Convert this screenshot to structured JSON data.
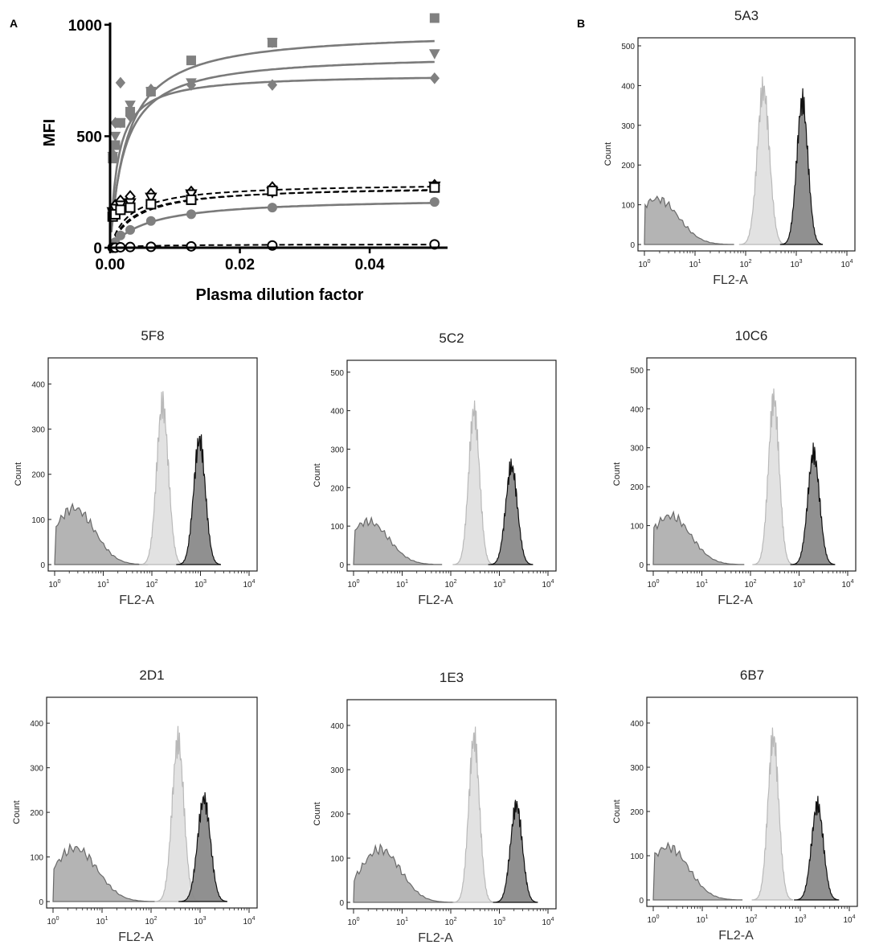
{
  "figure": {
    "panel_a_label": "A",
    "panel_b_label": "B"
  },
  "colors": {
    "marker_gray": "#808080",
    "curve_gray": "#7a7a7a",
    "axis": "#000000",
    "hist_low": "#b4b4b4",
    "hist_low_edge": "#6a6a6a",
    "hist_mid": "#e2e2e2",
    "hist_mid_edge": "#b9b9b9",
    "hist_high": "#8a8a8a",
    "hist_high_edge": "#111111"
  },
  "chart_data": [
    {
      "type": "scatter",
      "panel": "A",
      "title": "",
      "xlabel": "Plasma dilution factor",
      "ylabel": "MFI",
      "xlim": [
        0,
        0.052
      ],
      "ylim": [
        0,
        1010
      ],
      "xticks": [
        0.0,
        0.02,
        0.04
      ],
      "xtick_labels": [
        "0.00",
        "0.02",
        "0.04"
      ],
      "yticks": [
        0,
        500,
        1000
      ],
      "ytick_labels": [
        "0",
        "500",
        "1000"
      ],
      "x": [
        0.0004,
        0.0008,
        0.0016,
        0.0031,
        0.0063,
        0.0125,
        0.025,
        0.05
      ],
      "series": [
        {
          "name": "square-filled",
          "marker": "square",
          "fill": "filled",
          "line": "solid",
          "values": [
            400,
            460,
            560,
            610,
            700,
            840,
            920,
            1030
          ],
          "fit_top": 975,
          "fit_k": 0.0026
        },
        {
          "name": "triangle-filled",
          "marker": "triangle-down",
          "fill": "filled",
          "line": "solid",
          "values": [
            410,
            500,
            560,
            640,
            700,
            740,
            920,
            870
          ],
          "fit_top": 870,
          "fit_k": 0.0022
        },
        {
          "name": "diamond-filled",
          "marker": "diamond",
          "fill": "filled",
          "line": "solid",
          "values": [
            420,
            560,
            740,
            590,
            710,
            730,
            730,
            760
          ],
          "fit_top": 780,
          "fit_k": 0.0012
        },
        {
          "name": "circle-filled",
          "marker": "circle",
          "fill": "filled",
          "line": "solid",
          "values": [
            5,
            25,
            55,
            80,
            120,
            150,
            180,
            205
          ],
          "fit_top": 225,
          "fit_k": 0.006
        },
        {
          "name": "diamond-open",
          "marker": "diamond",
          "fill": "open",
          "line": "dashed",
          "values": [
            170,
            190,
            210,
            230,
            240,
            250,
            270,
            280
          ],
          "fit_top": 290,
          "fit_k": 0.003
        },
        {
          "name": "triangle-open",
          "marker": "triangle-down",
          "fill": "open",
          "line": "dashed",
          "values": [
            160,
            175,
            190,
            200,
            225,
            240,
            250,
            275
          ],
          "fit_top": 275,
          "fit_k": 0.0035
        },
        {
          "name": "square-open",
          "marker": "square",
          "fill": "open",
          "line": "dashed",
          "values": [
            140,
            150,
            170,
            180,
            195,
            215,
            255,
            270
          ],
          "fit_top": 280,
          "fit_k": 0.004
        },
        {
          "name": "circle-open",
          "marker": "circle",
          "fill": "open",
          "line": "dashed",
          "values": [
            0,
            0,
            2,
            3,
            4,
            6,
            10,
            15
          ],
          "fit_top": 16,
          "fit_k": 0.006
        }
      ]
    },
    {
      "type": "area",
      "panel": "B",
      "title": "5A3",
      "xlabel": "FL2-A",
      "ylabel": "Count",
      "ylim": [
        0,
        500
      ],
      "yticks": [
        0,
        100,
        200,
        300,
        400,
        500
      ],
      "xticks": [
        "10^0",
        "10^1",
        "10^2",
        "10^3",
        "10^4"
      ],
      "series": [
        {
          "name": "low",
          "center_log": 0.25,
          "width": 0.42,
          "peak": 115
        },
        {
          "name": "mid",
          "center_log": 2.35,
          "width": 0.12,
          "peak": 390
        },
        {
          "name": "high",
          "center_log": 3.12,
          "width": 0.11,
          "peak": 360
        }
      ]
    },
    {
      "type": "area",
      "panel": "B",
      "title": "5F8",
      "xlabel": "FL2-A",
      "ylabel": "Count",
      "ylim": [
        0,
        440
      ],
      "yticks": [
        0,
        100,
        200,
        300,
        400
      ],
      "xticks": [
        "10^0",
        "10^1",
        "10^2",
        "10^3",
        "10^4"
      ],
      "series": [
        {
          "name": "low",
          "center_log": 0.4,
          "width": 0.42,
          "peak": 125
        },
        {
          "name": "mid",
          "center_log": 2.22,
          "width": 0.12,
          "peak": 355
        },
        {
          "name": "high",
          "center_log": 2.98,
          "width": 0.12,
          "peak": 275
        }
      ]
    },
    {
      "type": "area",
      "panel": "B",
      "title": "5C2",
      "xlabel": "FL2-A",
      "ylabel": "Count",
      "ylim": [
        0,
        510
      ],
      "yticks": [
        0,
        100,
        200,
        300,
        400,
        500
      ],
      "xticks": [
        "10^0",
        "10^1",
        "10^2",
        "10^3",
        "10^4"
      ],
      "series": [
        {
          "name": "low",
          "center_log": 0.3,
          "width": 0.42,
          "peak": 112
        },
        {
          "name": "mid",
          "center_log": 2.48,
          "width": 0.11,
          "peak": 400
        },
        {
          "name": "high",
          "center_log": 3.25,
          "width": 0.12,
          "peak": 255
        }
      ]
    },
    {
      "type": "area",
      "panel": "B",
      "title": "10C6",
      "xlabel": "FL2-A",
      "ylabel": "Count",
      "ylim": [
        0,
        510
      ],
      "yticks": [
        0,
        100,
        200,
        300,
        400,
        500
      ],
      "xticks": [
        "10^0",
        "10^1",
        "10^2",
        "10^3",
        "10^4"
      ],
      "series": [
        {
          "name": "low",
          "center_log": 0.35,
          "width": 0.42,
          "peak": 125
        },
        {
          "name": "mid",
          "center_log": 2.48,
          "width": 0.11,
          "peak": 425
        },
        {
          "name": "high",
          "center_log": 3.3,
          "width": 0.12,
          "peak": 285
        }
      ]
    },
    {
      "type": "area",
      "panel": "B",
      "title": "2D1",
      "xlabel": "FL2-A",
      "ylabel": "Count",
      "ylim": [
        0,
        440
      ],
      "yticks": [
        0,
        100,
        200,
        300,
        400
      ],
      "xticks": [
        "10^0",
        "10^1",
        "10^2",
        "10^3",
        "10^4"
      ],
      "series": [
        {
          "name": "low",
          "center_log": 0.45,
          "width": 0.45,
          "peak": 120
        },
        {
          "name": "mid",
          "center_log": 2.55,
          "width": 0.12,
          "peak": 360
        },
        {
          "name": "high",
          "center_log": 3.08,
          "width": 0.13,
          "peak": 230
        }
      ]
    },
    {
      "type": "area",
      "panel": "B",
      "title": "1E3",
      "xlabel": "FL2-A",
      "ylabel": "Count",
      "ylim": [
        0,
        440
      ],
      "yticks": [
        0,
        100,
        200,
        300,
        400
      ],
      "xticks": [
        "10^0",
        "10^1",
        "10^2",
        "10^3",
        "10^4"
      ],
      "series": [
        {
          "name": "low",
          "center_log": 0.55,
          "width": 0.42,
          "peak": 120
        },
        {
          "name": "mid",
          "center_log": 2.48,
          "width": 0.11,
          "peak": 370
        },
        {
          "name": "high",
          "center_log": 3.35,
          "width": 0.12,
          "peak": 220
        }
      ]
    },
    {
      "type": "area",
      "panel": "B",
      "title": "6B7",
      "xlabel": "FL2-A",
      "ylabel": "Count",
      "ylim": [
        0,
        440
      ],
      "yticks": [
        0,
        100,
        200,
        300,
        400
      ],
      "xticks": [
        "10^0",
        "10^1",
        "10^2",
        "10^3",
        "10^4"
      ],
      "series": [
        {
          "name": "low",
          "center_log": 0.3,
          "width": 0.42,
          "peak": 120
        },
        {
          "name": "mid",
          "center_log": 2.45,
          "width": 0.11,
          "peak": 365
        },
        {
          "name": "high",
          "center_log": 3.35,
          "width": 0.12,
          "peak": 215
        }
      ]
    }
  ]
}
